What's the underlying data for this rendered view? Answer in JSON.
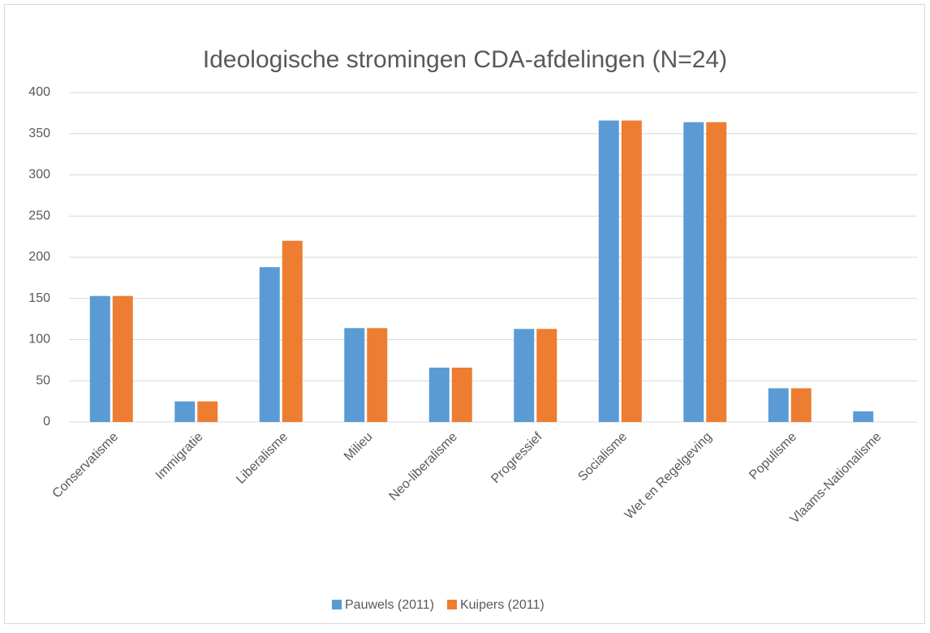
{
  "chart_data": {
    "type": "bar",
    "title": "Ideologische stromingen CDA-afdelingen (N=24)",
    "categories": [
      "Conservatisme",
      "Immigratie",
      "Liberalisme",
      "Milieu",
      "Neo-liberalisme",
      "Progressief",
      "Socialisme",
      "Wet en Regelgeving",
      "Populisme",
      "Vlaams-Nationalisme"
    ],
    "series": [
      {
        "name": "Pauwels (2011)",
        "color": "#5b9bd5",
        "values": [
          153,
          25,
          188,
          114,
          66,
          113,
          366,
          364,
          41,
          13
        ]
      },
      {
        "name": "Kuipers (2011)",
        "color": "#ed7d31",
        "values": [
          153,
          25,
          220,
          114,
          66,
          113,
          366,
          364,
          41,
          0
        ]
      }
    ],
    "ylim": [
      0,
      400
    ],
    "yticks": [
      0,
      50,
      100,
      150,
      200,
      250,
      300,
      350,
      400
    ],
    "grid": true,
    "legend": "bottom"
  }
}
